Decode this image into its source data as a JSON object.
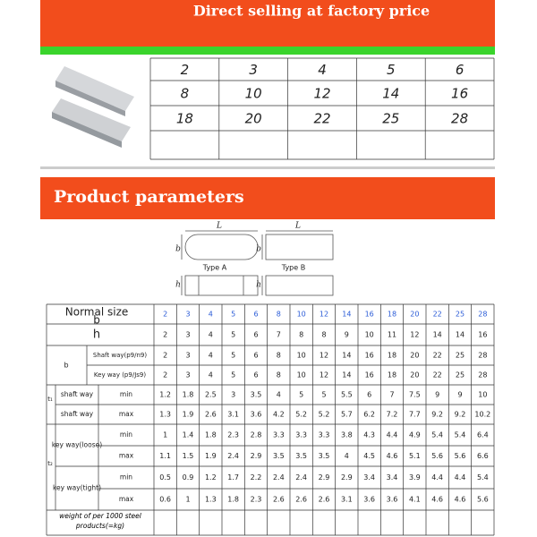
{
  "header": {
    "title": "Direct selling at factory price"
  },
  "sizes_table": {
    "rows": [
      [
        "2",
        "3",
        "4",
        "5",
        "6"
      ],
      [
        "8",
        "10",
        "12",
        "14",
        "16"
      ],
      [
        "18",
        "20",
        "22",
        "25",
        "28"
      ]
    ]
  },
  "section_title": "Product parameters",
  "diagram": {
    "length": "L",
    "width": "b",
    "height": "h",
    "type_a": "Type A",
    "type_b": "Type B"
  },
  "params": {
    "normal_size": "Normal size",
    "b": "b",
    "h": "h",
    "b_values": [
      "2",
      "3",
      "4",
      "5",
      "6",
      "8",
      "10",
      "12",
      "14",
      "16",
      "18",
      "20",
      "22",
      "25",
      "28"
    ],
    "h_values": [
      "2",
      "3",
      "4",
      "5",
      "6",
      "7",
      "8",
      "8",
      "9",
      "10",
      "11",
      "12",
      "14",
      "14",
      "16"
    ],
    "width_group": {
      "label": "b",
      "rows": [
        {
          "label": "Shaft way(p9/n9)",
          "values": [
            "2",
            "3",
            "4",
            "5",
            "6",
            "8",
            "10",
            "12",
            "14",
            "16",
            "18",
            "20",
            "22",
            "25",
            "28"
          ]
        },
        {
          "label": "Key way (p9/Js9)",
          "values": [
            "2",
            "3",
            "4",
            "5",
            "6",
            "8",
            "10",
            "12",
            "14",
            "16",
            "18",
            "20",
            "22",
            "25",
            "28"
          ]
        }
      ]
    },
    "t1": {
      "label": "t₁",
      "rows": [
        {
          "label": "shaft way",
          "bound": "min",
          "values": [
            "1.2",
            "1.8",
            "2.5",
            "3",
            "3.5",
            "4",
            "5",
            "5",
            "5.5",
            "6",
            "7",
            "7.5",
            "9",
            "9",
            "10"
          ]
        },
        {
          "label": "shaft way",
          "bound": "max",
          "values": [
            "1.3",
            "1.9",
            "2.6",
            "3.1",
            "3.6",
            "4.2",
            "5.2",
            "5.2",
            "5.7",
            "6.2",
            "7.2",
            "7.7",
            "9.2",
            "9.2",
            "10.2"
          ]
        }
      ]
    },
    "t2": {
      "label": "t₂",
      "rows": [
        {
          "label": "key way(loose)",
          "bound": "min",
          "values": [
            "1",
            "1.4",
            "1.8",
            "2.3",
            "2.8",
            "3.3",
            "3.3",
            "3.3",
            "3.8",
            "4.3",
            "4.4",
            "4.9",
            "5.4",
            "5.4",
            "6.4"
          ]
        },
        {
          "bound": "max",
          "values": [
            "1.1",
            "1.5",
            "1.9",
            "2.4",
            "2.9",
            "3.5",
            "3.5",
            "3.5",
            "4",
            "4.5",
            "4.6",
            "5.1",
            "5.6",
            "5.6",
            "6.6"
          ]
        },
        {
          "label": "key way(tight)",
          "bound": "min",
          "values": [
            "0.5",
            "0.9",
            "1.2",
            "1.7",
            "2.2",
            "2.4",
            "2.4",
            "2.9",
            "2.9",
            "3.4",
            "3.4",
            "3.9",
            "4.4",
            "4.4",
            "5.4"
          ]
        },
        {
          "bound": "max",
          "values": [
            "0.6",
            "1",
            "1.3",
            "1.8",
            "2.3",
            "2.6",
            "2.6",
            "2.6",
            "3.1",
            "3.6",
            "3.6",
            "4.1",
            "4.6",
            "4.6",
            "5.6"
          ]
        }
      ]
    },
    "weight": "weight of per 1000 steel products(=kg)"
  }
}
